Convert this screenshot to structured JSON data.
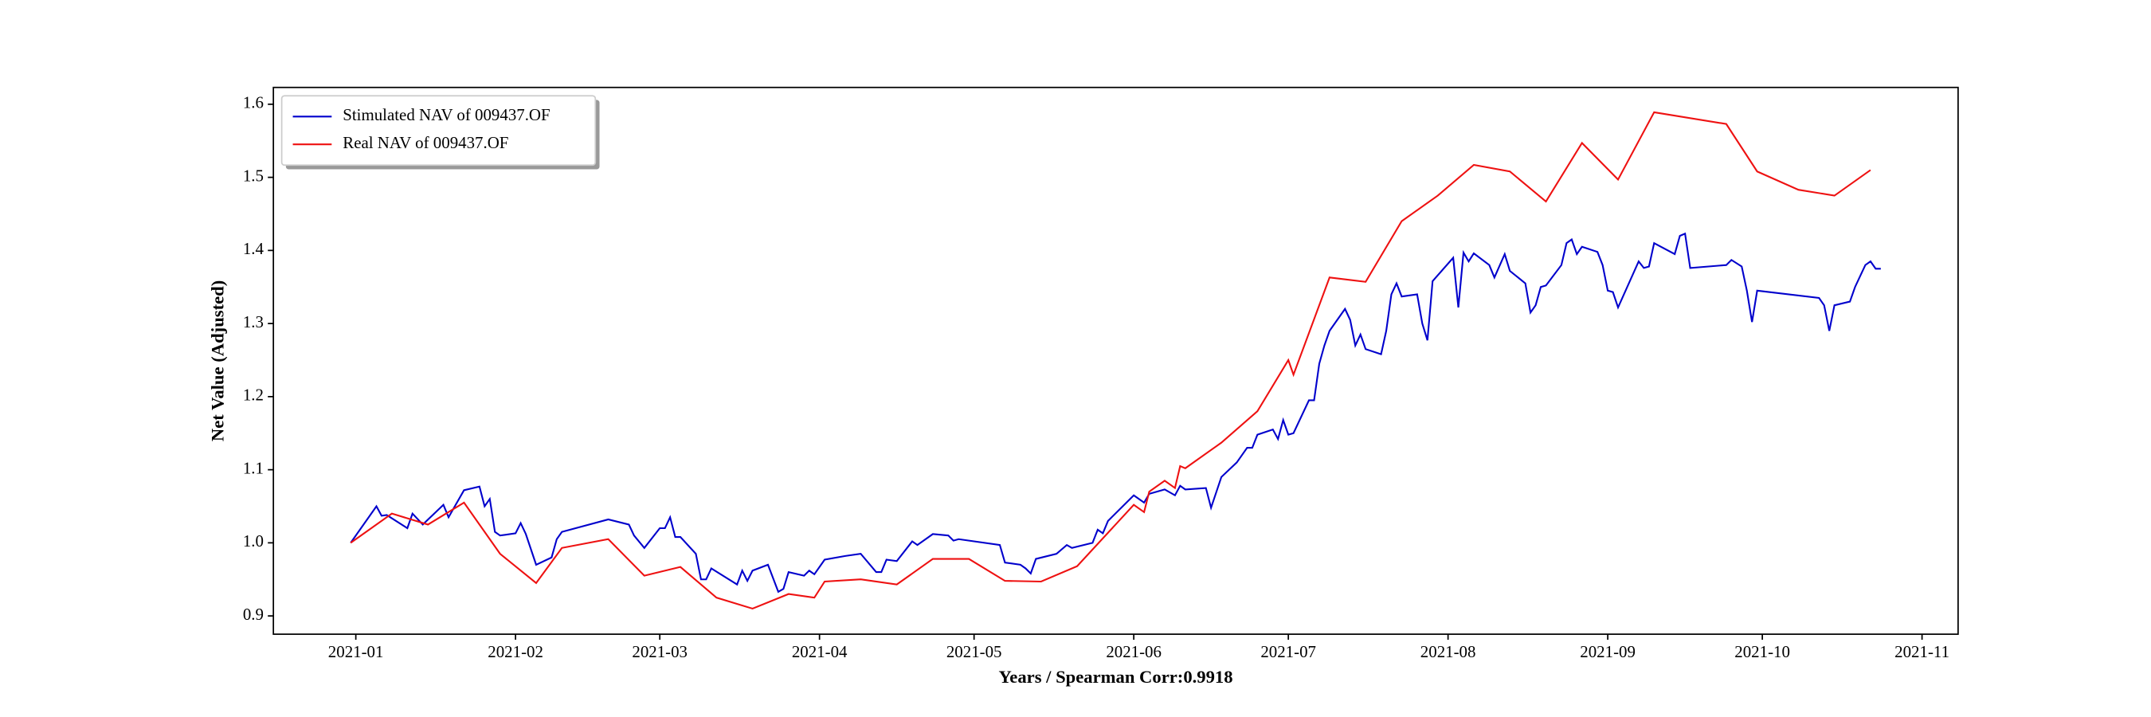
{
  "chart_data": {
    "type": "line",
    "xlabel": "Years / Spearman Corr:0.9918",
    "ylabel": "Net Value (Adjusted)",
    "xlim": [
      "2020-12-16",
      "2021-11-08"
    ],
    "xticks": [
      {
        "value": "2021-01-01",
        "label": "2021-01"
      },
      {
        "value": "2021-02-01",
        "label": "2021-02"
      },
      {
        "value": "2021-03-01",
        "label": "2021-03"
      },
      {
        "value": "2021-04-01",
        "label": "2021-04"
      },
      {
        "value": "2021-05-01",
        "label": "2021-05"
      },
      {
        "value": "2021-06-01",
        "label": "2021-06"
      },
      {
        "value": "2021-07-01",
        "label": "2021-07"
      },
      {
        "value": "2021-08-01",
        "label": "2021-08"
      },
      {
        "value": "2021-09-01",
        "label": "2021-09"
      },
      {
        "value": "2021-10-01",
        "label": "2021-10"
      },
      {
        "value": "2021-11-01",
        "label": "2021-11"
      }
    ],
    "ylim": [
      0.875,
      1.623
    ],
    "yticks": [
      {
        "value": 0.9,
        "label": "0.9"
      },
      {
        "value": 1.0,
        "label": "1.0"
      },
      {
        "value": 1.1,
        "label": "1.1"
      },
      {
        "value": 1.2,
        "label": "1.2"
      },
      {
        "value": 1.3,
        "label": "1.3"
      },
      {
        "value": 1.4,
        "label": "1.4"
      },
      {
        "value": 1.5,
        "label": "1.5"
      },
      {
        "value": 1.6,
        "label": "1.6"
      }
    ],
    "legend": "upper left",
    "series": [
      {
        "name": "Stimulated NAV of 009437.OF",
        "color": "#0000cc",
        "x": [
          "2020-12-31",
          "2021-01-05",
          "2021-01-06",
          "2021-01-07",
          "2021-01-11",
          "2021-01-12",
          "2021-01-14",
          "2021-01-18",
          "2021-01-19",
          "2021-01-22",
          "2021-01-25",
          "2021-01-26",
          "2021-01-27",
          "2021-01-28",
          "2021-01-29",
          "2021-02-01",
          "2021-02-02",
          "2021-02-03",
          "2021-02-05",
          "2021-02-08",
          "2021-02-09",
          "2021-02-10",
          "2021-02-19",
          "2021-02-23",
          "2021-02-24",
          "2021-02-26",
          "2021-03-01",
          "2021-03-02",
          "2021-03-03",
          "2021-03-04",
          "2021-03-05",
          "2021-03-08",
          "2021-03-09",
          "2021-03-10",
          "2021-03-11",
          "2021-03-16",
          "2021-03-17",
          "2021-03-18",
          "2021-03-19",
          "2021-03-22",
          "2021-03-24",
          "2021-03-25",
          "2021-03-26",
          "2021-03-29",
          "2021-03-30",
          "2021-03-31",
          "2021-04-02",
          "2021-04-06",
          "2021-04-09",
          "2021-04-12",
          "2021-04-13",
          "2021-04-14",
          "2021-04-16",
          "2021-04-19",
          "2021-04-20",
          "2021-04-23",
          "2021-04-26",
          "2021-04-27",
          "2021-04-28",
          "2021-05-06",
          "2021-05-07",
          "2021-05-10",
          "2021-05-11",
          "2021-05-12",
          "2021-05-13",
          "2021-05-17",
          "2021-05-19",
          "2021-05-20",
          "2021-05-24",
          "2021-05-25",
          "2021-05-26",
          "2021-05-27",
          "2021-06-01",
          "2021-06-03",
          "2021-06-04",
          "2021-06-07",
          "2021-06-09",
          "2021-06-10",
          "2021-06-11",
          "2021-06-15",
          "2021-06-16",
          "2021-06-18",
          "2021-06-21",
          "2021-06-23",
          "2021-06-24",
          "2021-06-25",
          "2021-06-28",
          "2021-06-29",
          "2021-06-30",
          "2021-07-01",
          "2021-07-02",
          "2021-07-05",
          "2021-07-06",
          "2021-07-07",
          "2021-07-08",
          "2021-07-09",
          "2021-07-12",
          "2021-07-13",
          "2021-07-14",
          "2021-07-15",
          "2021-07-16",
          "2021-07-19",
          "2021-07-20",
          "2021-07-21",
          "2021-07-22",
          "2021-07-23",
          "2021-07-26",
          "2021-07-27",
          "2021-07-28",
          "2021-07-29",
          "2021-08-02",
          "2021-08-03",
          "2021-08-04",
          "2021-08-05",
          "2021-08-06",
          "2021-08-09",
          "2021-08-10",
          "2021-08-12",
          "2021-08-13",
          "2021-08-16",
          "2021-08-17",
          "2021-08-18",
          "2021-08-19",
          "2021-08-20",
          "2021-08-23",
          "2021-08-24",
          "2021-08-25",
          "2021-08-26",
          "2021-08-27",
          "2021-08-30",
          "2021-08-31",
          "2021-09-01",
          "2021-09-02",
          "2021-09-03",
          "2021-09-07",
          "2021-09-08",
          "2021-09-09",
          "2021-09-10",
          "2021-09-14",
          "2021-09-15",
          "2021-09-16",
          "2021-09-17",
          "2021-09-24",
          "2021-09-25",
          "2021-09-27",
          "2021-09-28",
          "2021-09-29",
          "2021-09-30",
          "2021-10-12",
          "2021-10-13",
          "2021-10-14",
          "2021-10-15",
          "2021-10-18",
          "2021-10-19",
          "2021-10-20",
          "2021-10-21",
          "2021-10-22",
          "2021-10-23",
          "2021-10-24"
        ],
        "values": [
          1.0,
          1.05,
          1.037,
          1.038,
          1.02,
          1.04,
          1.025,
          1.052,
          1.035,
          1.072,
          1.077,
          1.05,
          1.06,
          1.015,
          1.01,
          1.013,
          1.027,
          1.012,
          0.97,
          0.98,
          1.005,
          1.015,
          1.032,
          1.025,
          1.01,
          0.993,
          1.02,
          1.02,
          1.035,
          1.008,
          1.008,
          0.985,
          0.95,
          0.95,
          0.965,
          0.943,
          0.962,
          0.948,
          0.962,
          0.97,
          0.933,
          0.937,
          0.96,
          0.955,
          0.962,
          0.957,
          0.977,
          0.982,
          0.985,
          0.96,
          0.96,
          0.977,
          0.975,
          1.002,
          0.997,
          1.012,
          1.01,
          1.003,
          1.005,
          0.997,
          0.973,
          0.97,
          0.965,
          0.958,
          0.978,
          0.985,
          0.997,
          0.993,
          1.0,
          1.018,
          1.013,
          1.03,
          1.065,
          1.055,
          1.067,
          1.073,
          1.065,
          1.078,
          1.073,
          1.075,
          1.048,
          1.09,
          1.11,
          1.13,
          1.13,
          1.148,
          1.155,
          1.142,
          1.168,
          1.148,
          1.15,
          1.195,
          1.195,
          1.245,
          1.27,
          1.29,
          1.32,
          1.305,
          1.27,
          1.285,
          1.265,
          1.258,
          1.29,
          1.34,
          1.355,
          1.337,
          1.34,
          1.3,
          1.277,
          1.358,
          1.39,
          1.322,
          1.397,
          1.385,
          1.396,
          1.38,
          1.363,
          1.395,
          1.372,
          1.355,
          1.315,
          1.325,
          1.35,
          1.352,
          1.38,
          1.41,
          1.415,
          1.395,
          1.405,
          1.398,
          1.38,
          1.345,
          1.343,
          1.322,
          1.385,
          1.376,
          1.378,
          1.41,
          1.395,
          1.42,
          1.423,
          1.376,
          1.38,
          1.387,
          1.378,
          1.345,
          1.302,
          1.345,
          1.335,
          1.325,
          1.29,
          1.325,
          1.33,
          1.35,
          1.365,
          1.38,
          1.385,
          1.375,
          1.375
        ]
      },
      {
        "name": "Real NAV of 009437.OF",
        "color": "#ee1111",
        "x": [
          "2020-12-31",
          "2021-01-08",
          "2021-01-15",
          "2021-01-22",
          "2021-01-29",
          "2021-02-05",
          "2021-02-10",
          "2021-02-19",
          "2021-02-26",
          "2021-03-05",
          "2021-03-12",
          "2021-03-19",
          "2021-03-26",
          "2021-03-31",
          "2021-04-02",
          "2021-04-09",
          "2021-04-16",
          "2021-04-23",
          "2021-04-30",
          "2021-05-07",
          "2021-05-14",
          "2021-05-21",
          "2021-06-01",
          "2021-06-03",
          "2021-06-04",
          "2021-06-07",
          "2021-06-09",
          "2021-06-10",
          "2021-06-11",
          "2021-06-18",
          "2021-06-25",
          "2021-07-01",
          "2021-07-02",
          "2021-07-09",
          "2021-07-16",
          "2021-07-23",
          "2021-07-30",
          "2021-08-06",
          "2021-08-13",
          "2021-08-20",
          "2021-08-27",
          "2021-09-03",
          "2021-09-10",
          "2021-09-24",
          "2021-09-30",
          "2021-10-08",
          "2021-10-15",
          "2021-10-22"
        ],
        "values": [
          1.0,
          1.04,
          1.025,
          1.055,
          0.985,
          0.945,
          0.993,
          1.005,
          0.955,
          0.967,
          0.925,
          0.91,
          0.93,
          0.925,
          0.947,
          0.95,
          0.943,
          0.978,
          0.978,
          0.948,
          0.947,
          0.968,
          1.052,
          1.042,
          1.07,
          1.085,
          1.075,
          1.105,
          1.102,
          1.137,
          1.18,
          1.25,
          1.23,
          1.363,
          1.357,
          1.44,
          1.475,
          1.517,
          1.508,
          1.467,
          1.547,
          1.497,
          1.589,
          1.573,
          1.508,
          1.483,
          1.475,
          1.51
        ]
      }
    ]
  }
}
